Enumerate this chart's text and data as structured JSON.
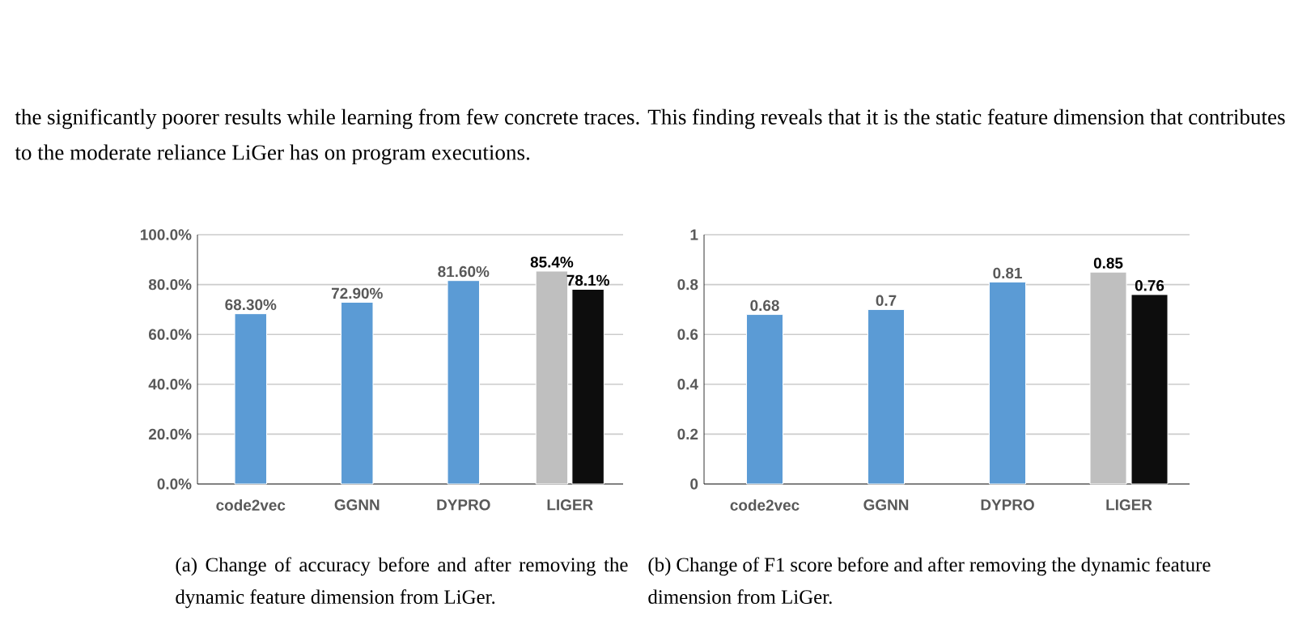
{
  "chart_data": [
    {
      "type": "bar",
      "categories": [
        "code2vec",
        "GGNN",
        "DYPRO",
        "LIGER"
      ],
      "series": [
        {
          "colors": [
            "#5b9bd5",
            "#5b9bd5",
            "#5b9bd5",
            "#bfbfbf"
          ],
          "values": [
            68.3,
            72.9,
            81.6,
            85.4
          ],
          "value_labels": [
            "68.30%",
            "72.90%",
            "81.60%",
            "85.4%"
          ]
        },
        {
          "color": "#0d0d0d",
          "values": [
            null,
            null,
            null,
            78.1
          ],
          "value_labels": [
            null,
            null,
            null,
            "78.1%"
          ]
        }
      ],
      "ylim": [
        0,
        100
      ],
      "yticks": [
        {
          "value": 0,
          "label": "0.0%"
        },
        {
          "value": 20,
          "label": "20.0%"
        },
        {
          "value": 40,
          "label": "40.0%"
        },
        {
          "value": 60,
          "label": "60.0%"
        },
        {
          "value": 80,
          "label": "80.0%"
        },
        {
          "value": 100,
          "label": "100.0%"
        }
      ],
      "grid": "y",
      "annotations": [
        "the significantly poorer results while learning from few concrete traces. This finding reveals that it is the static feature dimension that contributes to the moderate reliance LiGer has on program executions.",
        "(a) Change of accuracy before and after removing the dynamic feature dimension from LiGer."
      ]
    },
    {
      "type": "bar",
      "categories": [
        "code2vec",
        "GGNN",
        "DYPRO",
        "LIGER"
      ],
      "series": [
        {
          "colors": [
            "#5b9bd5",
            "#5b9bd5",
            "#5b9bd5",
            "#bfbfbf"
          ],
          "values": [
            0.68,
            0.7,
            0.81,
            0.85
          ],
          "value_labels": [
            "0.68",
            "0.7",
            "0.81",
            "0.85"
          ]
        },
        {
          "color": "#0d0d0d",
          "values": [
            null,
            null,
            null,
            0.76
          ],
          "value_labels": [
            null,
            null,
            null,
            "0.76"
          ]
        }
      ],
      "ylim": [
        0,
        1
      ],
      "yticks": [
        {
          "value": 0,
          "label": "0"
        },
        {
          "value": 0.2,
          "label": "0.2"
        },
        {
          "value": 0.4,
          "label": "0.4"
        },
        {
          "value": 0.6,
          "label": "0.6"
        },
        {
          "value": 0.8,
          "label": "0.8"
        },
        {
          "value": 1,
          "label": "1"
        }
      ],
      "grid": "y",
      "annotations": [
        "(b) Change of F1 score before and after removing the dynamic feature dimension from LiGer."
      ]
    }
  ]
}
